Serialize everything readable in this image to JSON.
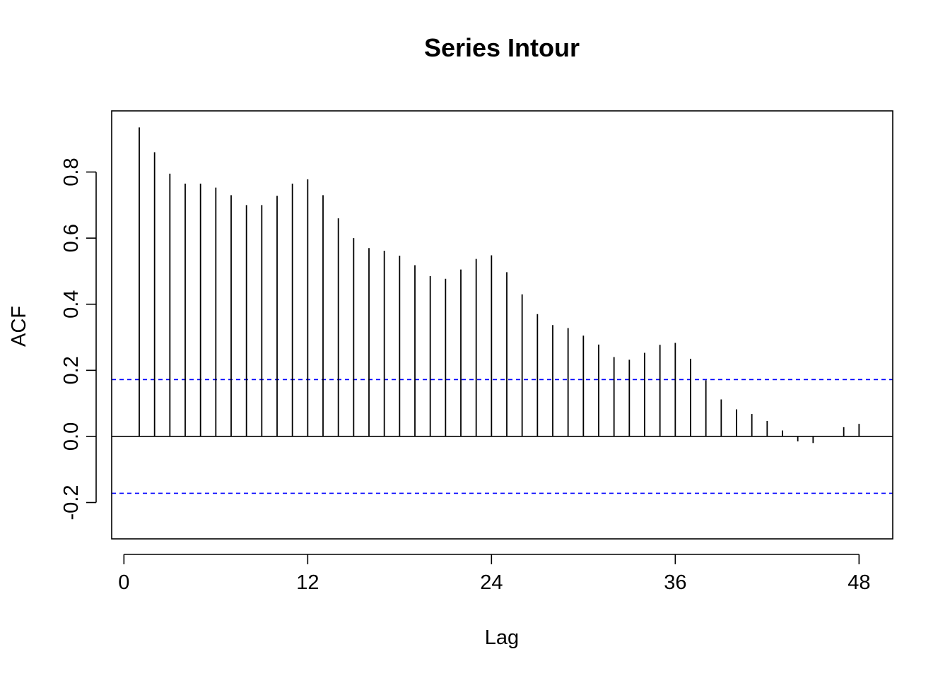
{
  "chart_data": {
    "type": "bar",
    "title": "Series  Intour",
    "xlabel": "Lag",
    "ylabel": "ACF",
    "xlim": [
      -0.8,
      50.2
    ],
    "ylim": [
      -0.31,
      0.985
    ],
    "x_ticks": [
      {
        "value": 0,
        "label": "0"
      },
      {
        "value": 12,
        "label": "12"
      },
      {
        "value": 24,
        "label": "24"
      },
      {
        "value": 36,
        "label": "36"
      },
      {
        "value": 48,
        "label": "48"
      }
    ],
    "y_ticks": [
      {
        "value": -0.2,
        "label": "-0.2"
      },
      {
        "value": 0.0,
        "label": "0.0"
      },
      {
        "value": 0.2,
        "label": "0.2"
      },
      {
        "value": 0.4,
        "label": "0.4"
      },
      {
        "value": 0.6,
        "label": "0.6"
      },
      {
        "value": 0.8,
        "label": "0.8"
      }
    ],
    "confidence_bound": 0.172,
    "confidence_color": "#0000ff",
    "bar_color": "#000000",
    "lags": [
      1,
      2,
      3,
      4,
      5,
      6,
      7,
      8,
      9,
      10,
      11,
      12,
      13,
      14,
      15,
      16,
      17,
      18,
      19,
      20,
      21,
      22,
      23,
      24,
      25,
      26,
      27,
      28,
      29,
      30,
      31,
      32,
      33,
      34,
      35,
      36,
      37,
      38,
      39,
      40,
      41,
      42,
      43,
      44,
      45,
      46,
      47,
      48
    ],
    "values": [
      0.935,
      0.86,
      0.795,
      0.765,
      0.765,
      0.753,
      0.73,
      0.7,
      0.7,
      0.728,
      0.765,
      0.778,
      0.73,
      0.66,
      0.6,
      0.57,
      0.562,
      0.547,
      0.518,
      0.485,
      0.477,
      0.505,
      0.537,
      0.548,
      0.497,
      0.43,
      0.37,
      0.337,
      0.328,
      0.305,
      0.278,
      0.24,
      0.232,
      0.253,
      0.277,
      0.283,
      0.235,
      0.17,
      0.112,
      0.082,
      0.068,
      0.047,
      0.018,
      -0.015,
      -0.02,
      0.0,
      0.028,
      0.038
    ]
  }
}
